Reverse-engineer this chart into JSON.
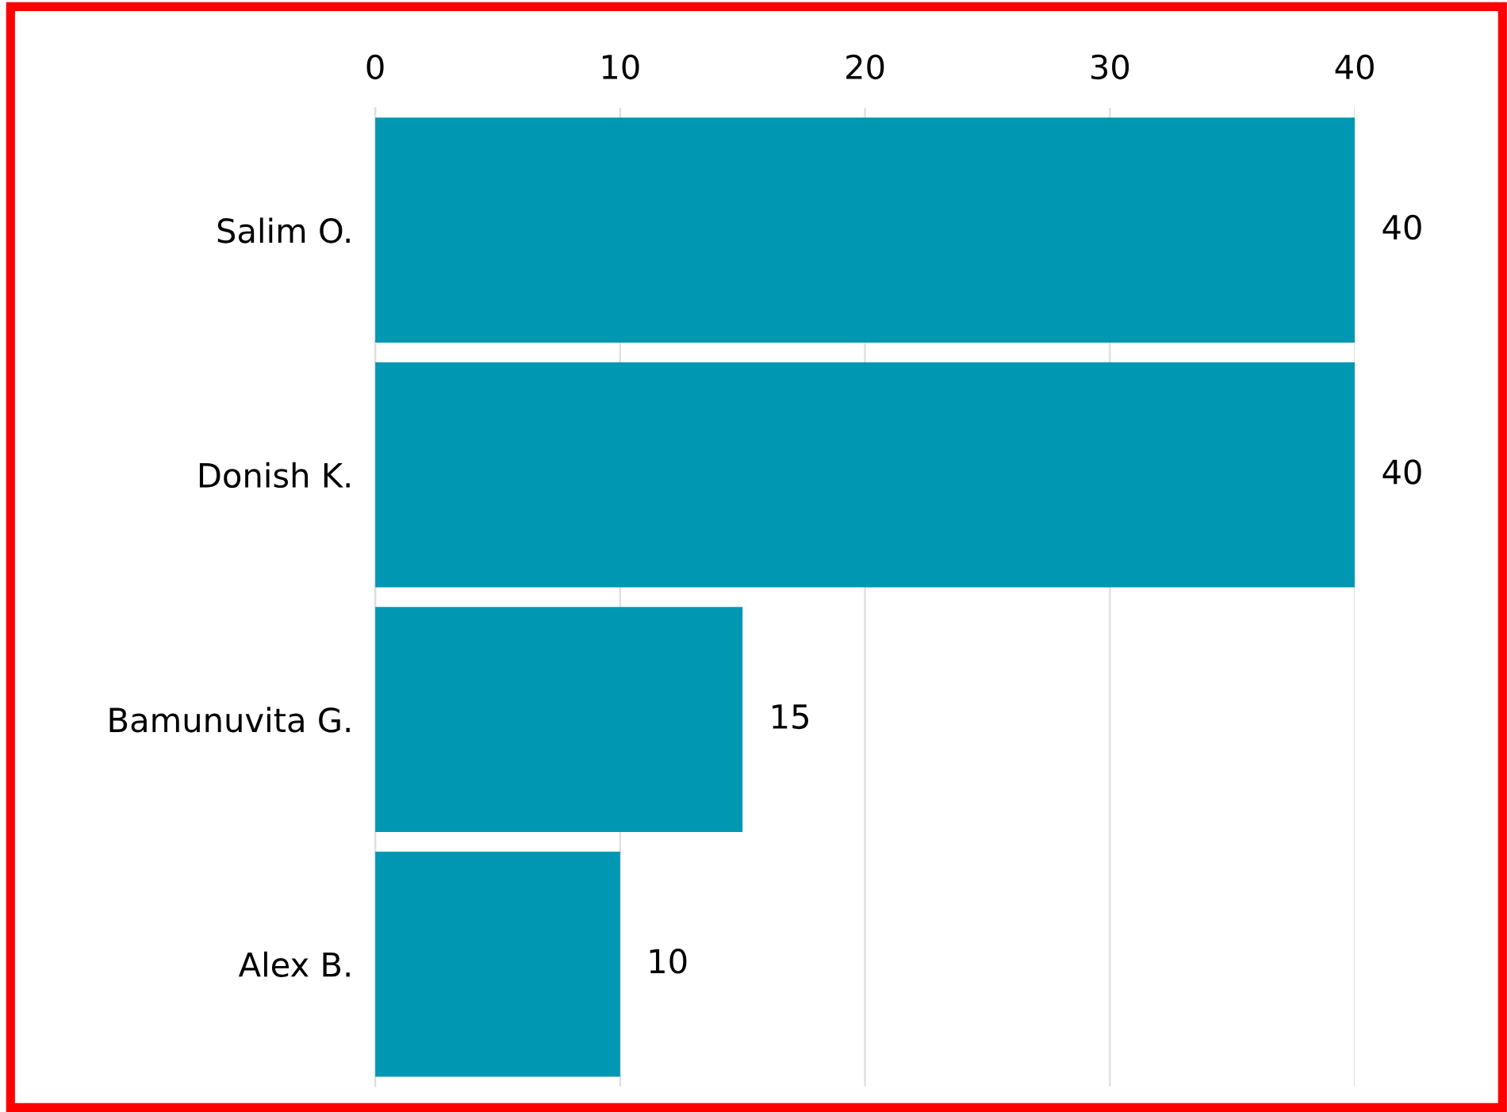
{
  "chart_data": {
    "type": "bar",
    "orientation": "horizontal",
    "categories": [
      "Salim O.",
      "Donish K.",
      "Bamunuvita G.",
      "Alex B."
    ],
    "values": [
      40,
      40,
      15,
      10
    ],
    "color": "#0097b2",
    "xlim": [
      0,
      40
    ],
    "xticks": [
      0,
      10,
      20,
      30,
      40
    ],
    "grid": "x",
    "data_labels": true
  }
}
